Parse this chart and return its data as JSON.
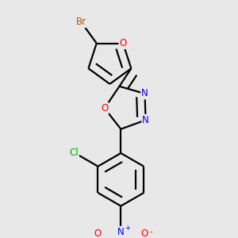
{
  "bg_color": "#e8e8e8",
  "bond_color": "#000000",
  "bond_width": 1.6,
  "dbo": 0.018,
  "atom_colors": {
    "Br": "#b35a00",
    "O": "#ff0000",
    "N": "#0000ff",
    "Cl": "#00aa00",
    "C": "#000000"
  },
  "font_size": 8.5,
  "figsize": [
    3.0,
    3.0
  ],
  "dpi": 100
}
